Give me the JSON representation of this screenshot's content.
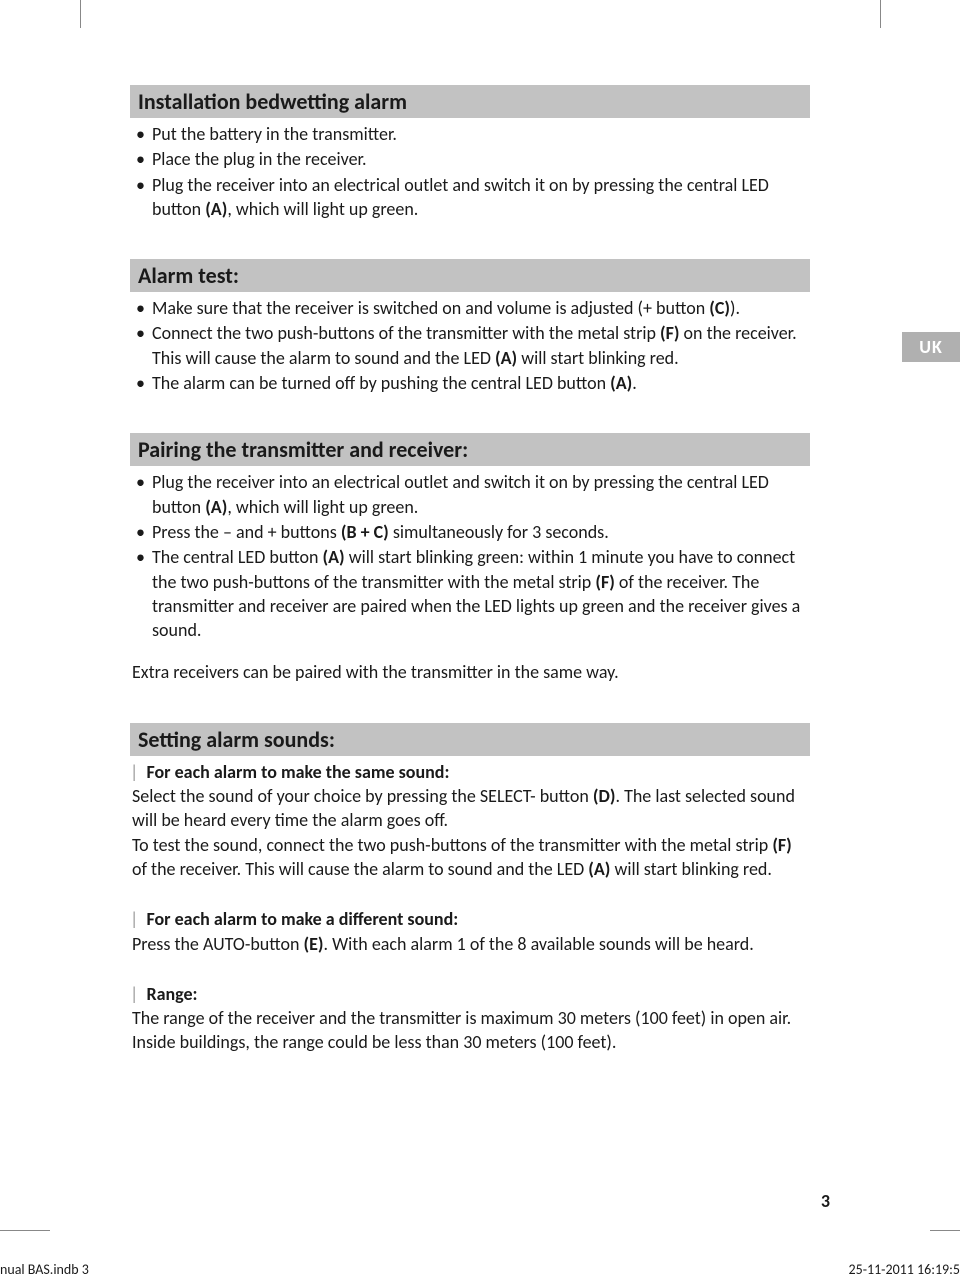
{
  "colors": {
    "heading_bg": "#c2c2c2",
    "tab_bg": "#b0b0b0",
    "tab_text": "#ffffff",
    "text": "#1a1a1a",
    "pipe": "#999999"
  },
  "fonts": {
    "heading_size": 22,
    "body_size": 18
  },
  "language_tab": "UK",
  "page_number": "3",
  "footer": {
    "left": "nual BAS.indb   3",
    "right": "25-11-2011   16:19:5"
  },
  "sections": {
    "installation": {
      "heading": "Installation bedwetting alarm",
      "items": {
        "i1": "Put the battery in the transmitter.",
        "i2": "Place the plug in the receiver.",
        "i3a": "Plug the receiver into an electrical outlet and switch it on by pressing the central LED button ",
        "i3b": "(A)",
        "i3c": ", which will light up green."
      }
    },
    "alarm_test": {
      "heading": "Alarm test:",
      "items": {
        "i1a": "Make sure that the receiver is switched on and volume is adjusted (+ button ",
        "i1b": "(C)",
        "i1c": ").",
        "i2a": "Connect the two push-buttons of the transmitter with the metal strip ",
        "i2b": "(F)",
        "i2c": " on the receiver. This will cause the alarm to sound and the LED ",
        "i2d": "(A)",
        "i2e": " will start blinking red.",
        "i3a": "The alarm can be turned off by pushing the central LED button ",
        "i3b": "(A)",
        "i3c": "."
      }
    },
    "pairing": {
      "heading": "Pairing the transmitter and receiver:",
      "items": {
        "i1a": "Plug the receiver into an electrical outlet and switch it on by pressing the central LED button ",
        "i1b": "(A)",
        "i1c": ", which will light up green.",
        "i2a": "Press the – and + buttons ",
        "i2b": "(B + C)",
        "i2c": " simultaneously for 3 seconds.",
        "i3a": "The central LED button ",
        "i3b": "(A)",
        "i3c": " will start blinking green: within 1 minute you have to connect the two push-buttons of the transmitter with the metal strip ",
        "i3d": "(F)",
        "i3e": " of the receiver. The transmitter and receiver are paired when the LED lights up green and the receiver gives a sound."
      },
      "extra": "Extra receivers can be paired with the transmitter in the same way."
    },
    "setting_sounds": {
      "heading": "Setting alarm sounds:",
      "same_sound": {
        "label": "For each alarm to make the same sound:",
        "p1a": "Select the sound of your choice by pressing the SELECT- button ",
        "p1b": "(D)",
        "p1c": ". The last selected sound will be heard every time the alarm goes off.",
        "p2a": "To test the sound, connect the two push-buttons of the transmitter with the metal strip ",
        "p2b": "(F)",
        "p2c": " of the receiver. This will cause the alarm to sound and the LED ",
        "p2d": "(A)",
        "p2e": " will start blinking red."
      },
      "diff_sound": {
        "label": "For each alarm to make a different sound:",
        "p1a": "Press the AUTO-button ",
        "p1b": "(E)",
        "p1c": ". With each alarm 1 of the 8 available sounds will be heard."
      },
      "range": {
        "label": "Range:",
        "p1": "The range of the receiver and the transmitter is maximum 30 meters (100 feet) in open air. Inside buildings, the range could be less than 30 meters (100 feet)."
      }
    }
  }
}
